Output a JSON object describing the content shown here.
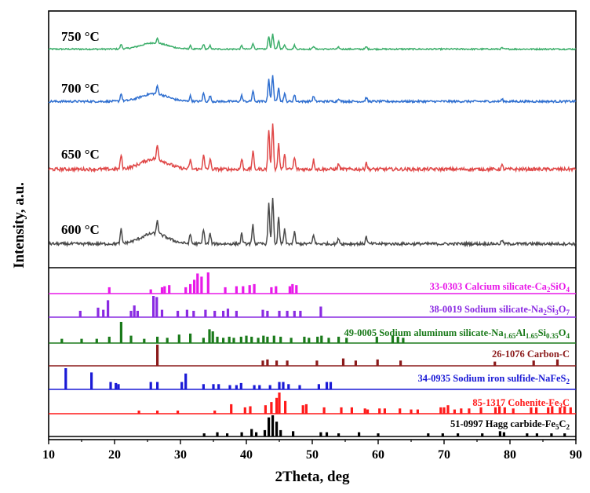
{
  "chart_data": {
    "type": "line",
    "xlabel": "2Theta, deg",
    "ylabel": "Intensity, a.u.",
    "xlim": [
      10,
      90
    ],
    "xticks": [
      10,
      20,
      30,
      40,
      50,
      60,
      70,
      80,
      90
    ],
    "tick_labels": [
      "10",
      "20",
      "30",
      "40",
      "50",
      "60",
      "70",
      "80",
      "90"
    ],
    "pattern_peaks": [
      {
        "pos": 21.0,
        "rel": 0.3
      },
      {
        "pos": 26.5,
        "rel": 0.3
      },
      {
        "pos": 31.5,
        "rel": 0.2
      },
      {
        "pos": 33.5,
        "rel": 0.32
      },
      {
        "pos": 34.5,
        "rel": 0.22
      },
      {
        "pos": 39.3,
        "rel": 0.22
      },
      {
        "pos": 41.0,
        "rel": 0.4
      },
      {
        "pos": 43.4,
        "rel": 0.85
      },
      {
        "pos": 44.0,
        "rel": 1.0
      },
      {
        "pos": 44.9,
        "rel": 0.55
      },
      {
        "pos": 45.8,
        "rel": 0.3
      },
      {
        "pos": 47.3,
        "rel": 0.25
      },
      {
        "pos": 50.2,
        "rel": 0.2
      },
      {
        "pos": 54.0,
        "rel": 0.12
      },
      {
        "pos": 58.2,
        "rel": 0.15
      },
      {
        "pos": 78.8,
        "rel": 0.08
      }
    ],
    "hump": {
      "center": 26.0,
      "height": 0.22
    },
    "series": [
      {
        "name": "750 °C",
        "color": "#3cae6a",
        "scale": 0.55,
        "noise": 0.05
      },
      {
        "name": "700 °C",
        "color": "#2f6fd0",
        "scale": 0.75,
        "noise": 0.06
      },
      {
        "name": "650 °C",
        "color": "#e04848",
        "scale": 1.0,
        "noise": 0.07
      },
      {
        "name": "600 °C",
        "color": "#4a4a4a",
        "scale": 1.0,
        "noise": 0.06
      }
    ],
    "references": [
      {
        "label": "33-0303 Calcium silicate-Ca",
        "label_sub": [
          {
            "t": "33-0303 Calcium silicate-Ca"
          },
          {
            "t": "2",
            "s": 1
          },
          {
            "t": "SiO"
          },
          {
            "t": "4",
            "s": 1
          }
        ],
        "color": "#e81ae8",
        "sticks": [
          [
            19.2,
            0.3
          ],
          [
            25.5,
            0.2
          ],
          [
            27.2,
            0.3
          ],
          [
            27.6,
            0.35
          ],
          [
            28.3,
            0.4
          ],
          [
            30.8,
            0.3
          ],
          [
            31.5,
            0.45
          ],
          [
            32.1,
            0.65
          ],
          [
            32.6,
            0.95
          ],
          [
            33.2,
            0.8
          ],
          [
            34.2,
            1.0
          ],
          [
            36.8,
            0.3
          ],
          [
            38.5,
            0.35
          ],
          [
            39.5,
            0.35
          ],
          [
            40.5,
            0.4
          ],
          [
            41.2,
            0.45
          ],
          [
            43.8,
            0.3
          ],
          [
            44.5,
            0.35
          ],
          [
            46.6,
            0.35
          ],
          [
            47.0,
            0.45
          ],
          [
            47.6,
            0.4
          ]
        ]
      },
      {
        "label": "38-0019 Sodium silicate-Na",
        "label_sub": [
          {
            "t": "38-0019 Sodium silicate-Na"
          },
          {
            "t": "2",
            "s": 1
          },
          {
            "t": "Si"
          },
          {
            "t": "3",
            "s": 1
          },
          {
            "t": "O"
          },
          {
            "t": "7",
            "s": 1
          }
        ],
        "color": "#8a2be2",
        "sticks": [
          [
            14.8,
            0.3
          ],
          [
            17.5,
            0.45
          ],
          [
            18.3,
            0.35
          ],
          [
            19.0,
            0.8
          ],
          [
            22.5,
            0.3
          ],
          [
            23.0,
            0.55
          ],
          [
            23.5,
            0.3
          ],
          [
            25.9,
            1.0
          ],
          [
            26.4,
            0.95
          ],
          [
            27.2,
            0.35
          ],
          [
            29.6,
            0.3
          ],
          [
            31.0,
            0.35
          ],
          [
            32.0,
            0.3
          ],
          [
            33.8,
            0.35
          ],
          [
            35.2,
            0.3
          ],
          [
            36.5,
            0.3
          ],
          [
            37.2,
            0.4
          ],
          [
            38.5,
            0.3
          ],
          [
            42.5,
            0.35
          ],
          [
            43.2,
            0.3
          ],
          [
            45.0,
            0.3
          ],
          [
            46.2,
            0.3
          ],
          [
            47.3,
            0.3
          ],
          [
            48.2,
            0.3
          ],
          [
            51.3,
            0.5
          ]
        ]
      },
      {
        "label": "49-0005 Sodium aluminum silicate-Na",
        "label_sub": [
          {
            "t": "49-0005 Sodium aluminum silicate-Na"
          },
          {
            "t": "1.65",
            "s": 1
          },
          {
            "t": "Al"
          },
          {
            "t": "1.65",
            "s": 1
          },
          {
            "t": "Si"
          },
          {
            "t": "0.35",
            "s": 1
          },
          {
            "t": "O"
          },
          {
            "t": "4",
            "s": 1
          }
        ],
        "color": "#1a7a1a",
        "sticks": [
          [
            12.0,
            0.2
          ],
          [
            15.0,
            0.2
          ],
          [
            17.3,
            0.2
          ],
          [
            19.2,
            0.3
          ],
          [
            21.0,
            1.0
          ],
          [
            22.5,
            0.35
          ],
          [
            24.5,
            0.2
          ],
          [
            26.5,
            0.3
          ],
          [
            28.0,
            0.25
          ],
          [
            29.8,
            0.4
          ],
          [
            31.5,
            0.45
          ],
          [
            33.5,
            0.25
          ],
          [
            34.4,
            0.65
          ],
          [
            34.9,
            0.55
          ],
          [
            35.6,
            0.3
          ],
          [
            36.5,
            0.25
          ],
          [
            37.4,
            0.3
          ],
          [
            38.1,
            0.25
          ],
          [
            39.2,
            0.3
          ],
          [
            40.0,
            0.35
          ],
          [
            40.8,
            0.3
          ],
          [
            41.8,
            0.25
          ],
          [
            42.6,
            0.35
          ],
          [
            43.2,
            0.3
          ],
          [
            44.2,
            0.35
          ],
          [
            45.2,
            0.3
          ],
          [
            46.8,
            0.25
          ],
          [
            48.8,
            0.3
          ],
          [
            49.5,
            0.25
          ],
          [
            50.8,
            0.3
          ],
          [
            51.4,
            0.35
          ],
          [
            52.5,
            0.25
          ],
          [
            54.0,
            0.3
          ],
          [
            55.2,
            0.25
          ],
          [
            59.8,
            0.3
          ],
          [
            62.2,
            0.35
          ],
          [
            63.0,
            0.3
          ],
          [
            63.8,
            0.25
          ]
        ]
      },
      {
        "label": "26-1076 Carbon-C",
        "label_sub": [
          {
            "t": "26-1076 Carbon-C"
          }
        ],
        "color": "#8b1a1a",
        "sticks": [
          [
            26.5,
            1.0
          ],
          [
            42.5,
            0.25
          ],
          [
            43.2,
            0.3
          ],
          [
            44.6,
            0.25
          ],
          [
            46.2,
            0.25
          ],
          [
            50.7,
            0.25
          ],
          [
            54.7,
            0.35
          ],
          [
            56.6,
            0.25
          ],
          [
            59.9,
            0.3
          ],
          [
            63.4,
            0.25
          ],
          [
            77.7,
            0.2
          ],
          [
            83.6,
            0.25
          ],
          [
            87.2,
            0.3
          ]
        ]
      },
      {
        "label": "34-0935 Sodium iron sulfide-NaFeS",
        "label_sub": [
          {
            "t": "34-0935 Sodium iron sulfide-NaFeS"
          },
          {
            "t": "2",
            "s": 1
          }
        ],
        "color": "#1a1ad6",
        "sticks": [
          [
            12.6,
            1.0
          ],
          [
            16.5,
            0.8
          ],
          [
            19.4,
            0.35
          ],
          [
            20.2,
            0.3
          ],
          [
            20.6,
            0.25
          ],
          [
            25.5,
            0.35
          ],
          [
            26.5,
            0.35
          ],
          [
            30.2,
            0.35
          ],
          [
            30.8,
            0.75
          ],
          [
            33.5,
            0.25
          ],
          [
            35.0,
            0.25
          ],
          [
            35.8,
            0.25
          ],
          [
            37.5,
            0.2
          ],
          [
            38.5,
            0.2
          ],
          [
            39.2,
            0.3
          ],
          [
            41.2,
            0.2
          ],
          [
            42.0,
            0.2
          ],
          [
            43.6,
            0.2
          ],
          [
            45.0,
            0.35
          ],
          [
            45.6,
            0.35
          ],
          [
            46.4,
            0.25
          ],
          [
            48.1,
            0.2
          ],
          [
            51.0,
            0.25
          ],
          [
            52.2,
            0.35
          ],
          [
            52.8,
            0.35
          ]
        ]
      },
      {
        "label": "85-1317 Cohenite-Fe",
        "label_sub": [
          {
            "t": "85-1317 Cohenite-Fe"
          },
          {
            "t": "3",
            "s": 1
          },
          {
            "t": "C"
          }
        ],
        "color": "#ff1a1a",
        "sticks": [
          [
            23.7,
            0.15
          ],
          [
            26.5,
            0.15
          ],
          [
            29.6,
            0.15
          ],
          [
            35.2,
            0.15
          ],
          [
            37.7,
            0.45
          ],
          [
            39.8,
            0.3
          ],
          [
            40.6,
            0.35
          ],
          [
            42.9,
            0.4
          ],
          [
            43.8,
            0.55
          ],
          [
            44.6,
            0.75
          ],
          [
            45.0,
            1.0
          ],
          [
            45.9,
            0.6
          ],
          [
            48.6,
            0.4
          ],
          [
            49.1,
            0.45
          ],
          [
            51.8,
            0.3
          ],
          [
            54.4,
            0.3
          ],
          [
            56.0,
            0.3
          ],
          [
            58.0,
            0.25
          ],
          [
            58.4,
            0.2
          ],
          [
            60.2,
            0.25
          ],
          [
            61.0,
            0.25
          ],
          [
            63.3,
            0.25
          ],
          [
            65.0,
            0.2
          ],
          [
            66.0,
            0.2
          ],
          [
            69.5,
            0.3
          ],
          [
            70.0,
            0.3
          ],
          [
            70.6,
            0.4
          ],
          [
            71.6,
            0.2
          ],
          [
            72.6,
            0.25
          ],
          [
            73.8,
            0.25
          ],
          [
            75.6,
            0.3
          ],
          [
            77.8,
            0.3
          ],
          [
            78.4,
            0.35
          ],
          [
            79.2,
            0.3
          ],
          [
            80.5,
            0.25
          ],
          [
            83.2,
            0.3
          ],
          [
            84.0,
            0.3
          ],
          [
            85.8,
            0.3
          ],
          [
            86.4,
            0.35
          ],
          [
            87.6,
            0.3
          ],
          [
            88.3,
            0.35
          ],
          [
            89.2,
            0.3
          ]
        ]
      },
      {
        "label": "51-0997 Hagg carbide-Fe",
        "label_sub": [
          {
            "t": "51-0997 Hagg carbide-Fe"
          },
          {
            "t": "5",
            "s": 1
          },
          {
            "t": "C"
          },
          {
            "t": "2",
            "s": 1
          }
        ],
        "color": "#000000",
        "sticks": [
          [
            33.6,
            0.15
          ],
          [
            35.6,
            0.2
          ],
          [
            37.1,
            0.15
          ],
          [
            39.3,
            0.2
          ],
          [
            40.8,
            0.35
          ],
          [
            41.5,
            0.2
          ],
          [
            42.8,
            0.3
          ],
          [
            43.4,
            0.9
          ],
          [
            44.0,
            1.0
          ],
          [
            44.6,
            0.7
          ],
          [
            45.2,
            0.3
          ],
          [
            47.1,
            0.25
          ],
          [
            51.3,
            0.2
          ],
          [
            52.2,
            0.2
          ],
          [
            54.0,
            0.15
          ],
          [
            57.1,
            0.2
          ],
          [
            60.0,
            0.15
          ],
          [
            67.6,
            0.15
          ],
          [
            69.8,
            0.15
          ],
          [
            72.1,
            0.15
          ],
          [
            75.8,
            0.15
          ],
          [
            78.5,
            0.25
          ],
          [
            79.1,
            0.2
          ],
          [
            82.6,
            0.15
          ],
          [
            84.1,
            0.15
          ],
          [
            86.3,
            0.15
          ],
          [
            88.3,
            0.15
          ]
        ]
      }
    ]
  }
}
